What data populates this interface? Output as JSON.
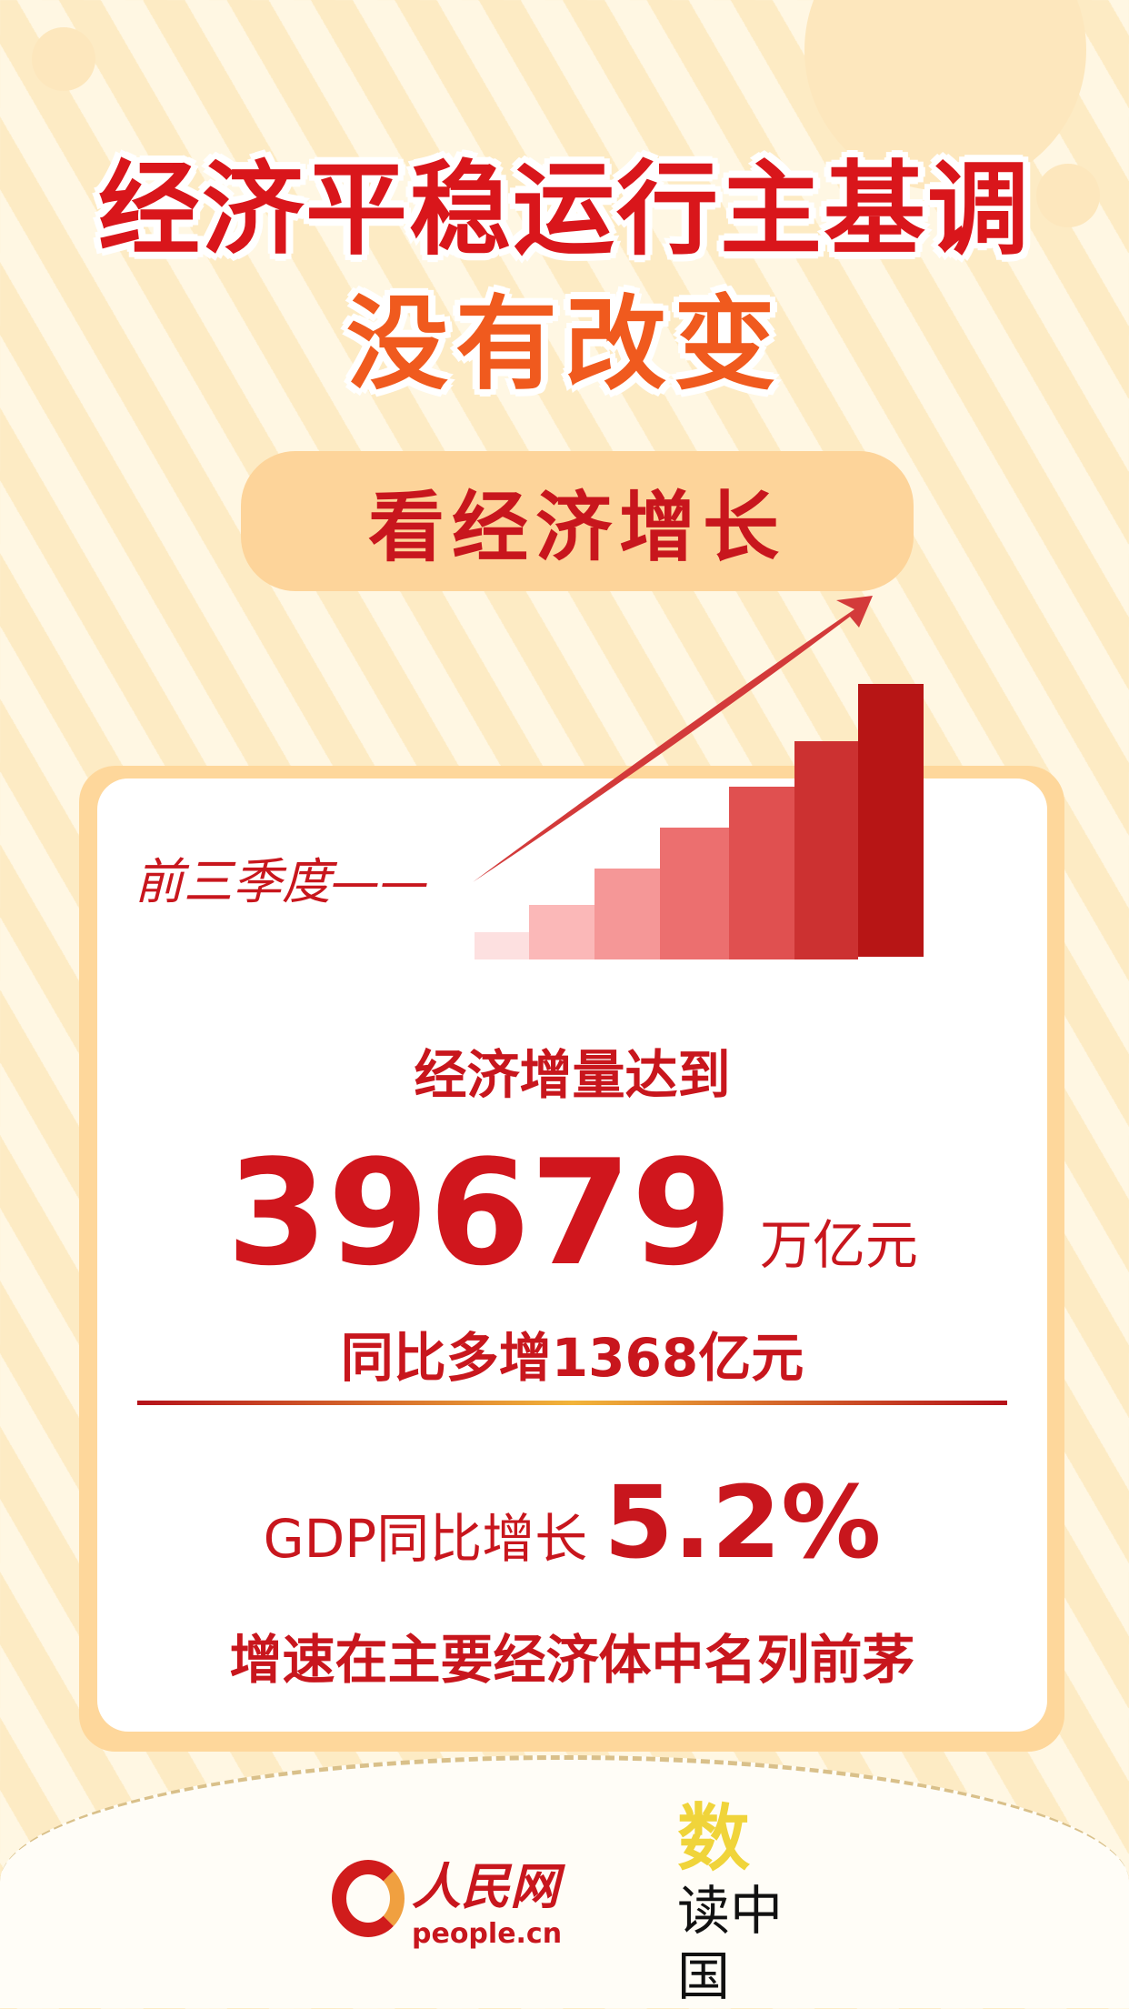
{
  "title": {
    "line1": "经济平稳运行主基调",
    "line2": "没有改变"
  },
  "section_label": "看经济增长",
  "card": {
    "period_label": "前三季度——",
    "increment_label": "经济增量达到",
    "increment_value": "39679",
    "increment_unit": "万亿元",
    "yoy_increase": "同比多增1368亿元",
    "gdp_label": "GDP同比增长",
    "gdp_value": "5.2%",
    "ranking": "增速在主要经济体中名列前茅"
  },
  "footer": {
    "logo1_text": "人民网",
    "logo1_domain": "people.cn",
    "logo2_text": "数读中国"
  },
  "colors": {
    "red": "#c8161d",
    "orange": "#f05a1e",
    "cream": "#fdebc4",
    "gold": "#f0d43a"
  }
}
